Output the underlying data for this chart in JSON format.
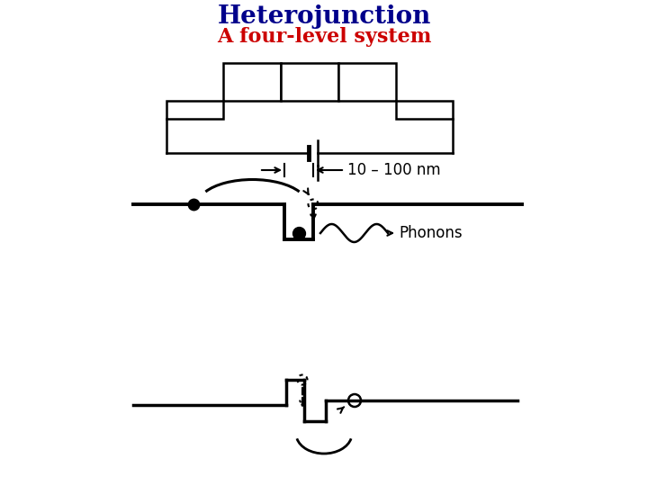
{
  "title": "Heterojunction",
  "title_color": "#00008B",
  "subtitle": "A four-level system",
  "subtitle_color": "#CC0000",
  "title_fontsize": 20,
  "subtitle_fontsize": 16,
  "bg_color": "#ffffff",
  "phonons_label": "Phonons",
  "dim_label": "10 – 100 nm"
}
